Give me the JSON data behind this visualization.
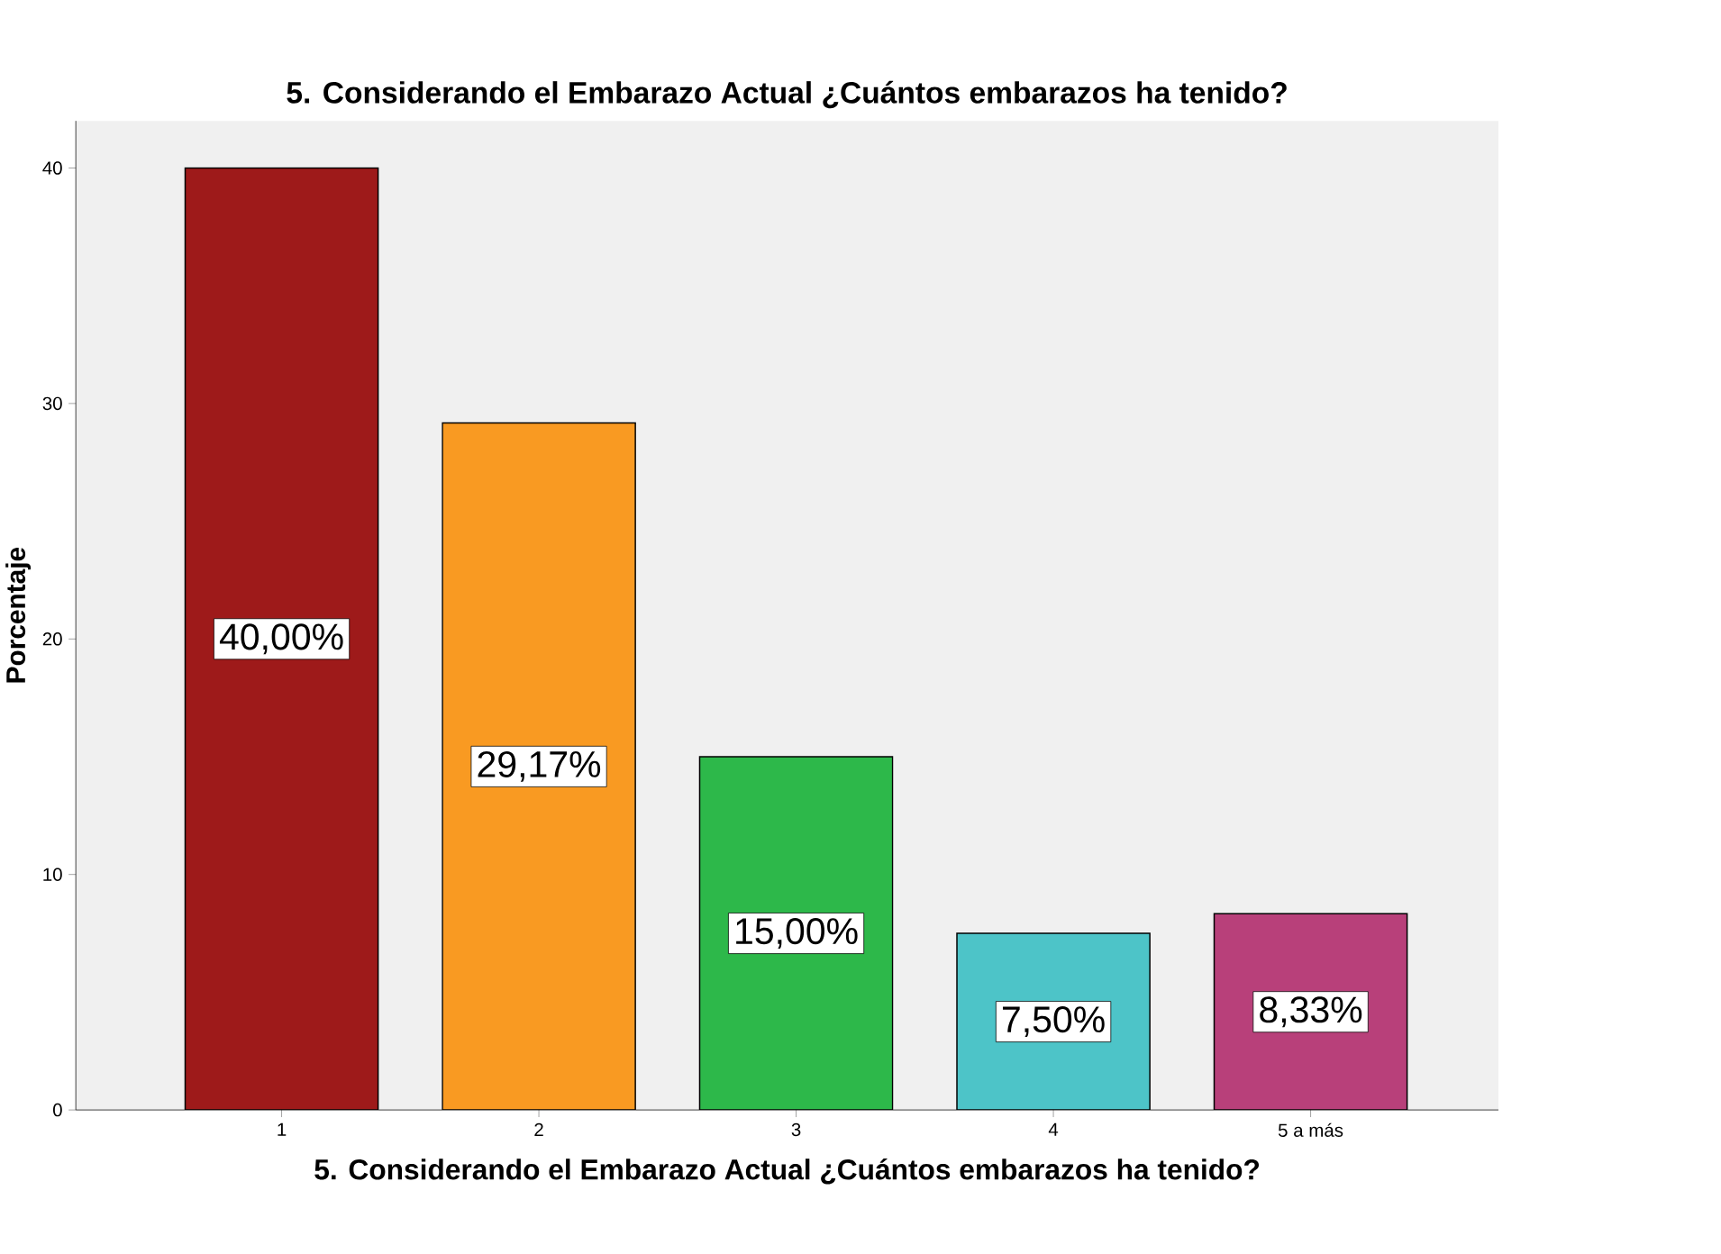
{
  "chart_data": {
    "type": "bar",
    "title": "5. Considerando el Embarazo Actual ¿Cuántos embarazos ha tenido?",
    "xlabel": "5. Considerando el Embarazo Actual ¿Cuántos embarazos ha tenido?",
    "ylabel": "Porcentaje",
    "categories": [
      "1",
      "2",
      "3",
      "4",
      "5 a más"
    ],
    "values": [
      40.0,
      29.17,
      15.0,
      7.5,
      8.33
    ],
    "colors": [
      "#9e1a1a",
      "#f99a22",
      "#2db84a",
      "#4dc4c8",
      "#b8407a"
    ],
    "value_labels": [
      "40,00%",
      "29,17%",
      "15,00%",
      "7,50%",
      "8,33%"
    ],
    "ylim": [
      0,
      42
    ],
    "yticks": [
      0,
      10,
      20,
      30,
      40
    ],
    "grid": false
  }
}
